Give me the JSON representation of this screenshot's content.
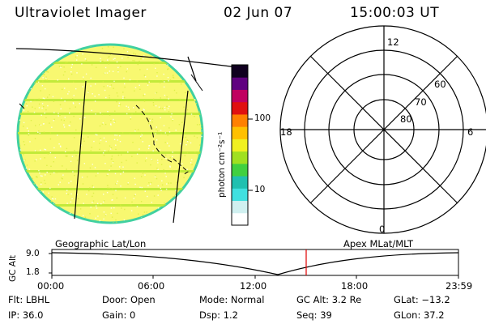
{
  "header": {
    "instrument": "Ultraviolet Imager",
    "date": "02 Jun 07",
    "time": "15:00:03 UT"
  },
  "colorbar": {
    "unit_label": "photon cm⁻²s⁻¹",
    "ticks": [
      "100",
      "10"
    ],
    "colors": [
      "#ffffff",
      "#d0f0f0",
      "#40e0e0",
      "#20c0b0",
      "#40d040",
      "#a0e020",
      "#f0f020",
      "#ffc000",
      "#ff8000",
      "#e01010",
      "#c00060",
      "#600080",
      "#100020"
    ]
  },
  "image_panel": {
    "fill_color": "#f8f870",
    "edge_color": "#40d0a0",
    "stripe_color": "#b8e830"
  },
  "polar_plot": {
    "hour_labels": {
      "top": "12",
      "left": "18",
      "right": "6",
      "bottom": "0"
    },
    "lat_labels": [
      "60",
      "70",
      "80"
    ]
  },
  "orbit_panel": {
    "left_caption": "Geographic Lat/Lon",
    "right_caption": "Apex MLat/MLT",
    "y_axis_label": "GC Alt",
    "y_ticks": [
      "9.0",
      "1.8"
    ],
    "x_ticks": [
      "00:00",
      "06:00",
      "12:00",
      "18:00",
      "23:59"
    ],
    "current_time_marker_color": "#e00000"
  },
  "status": {
    "row1": [
      {
        "key": "Flt:",
        "value": "LBHL"
      },
      {
        "key": "Door:",
        "value": "Open"
      },
      {
        "key": "Mode:",
        "value": "Normal"
      },
      {
        "key": "GC Alt:",
        "value": "3.2 Re"
      },
      {
        "key": "GLat:",
        "value": "−13.2"
      }
    ],
    "row2": [
      {
        "key": "IP:",
        "value": "36.0"
      },
      {
        "key": "Gain:",
        "value": "0"
      },
      {
        "key": "Dsp:",
        "value": "1.2"
      },
      {
        "key": "Seq:",
        "value": "39"
      },
      {
        "key": "GLon:",
        "value": "37.2"
      }
    ]
  }
}
